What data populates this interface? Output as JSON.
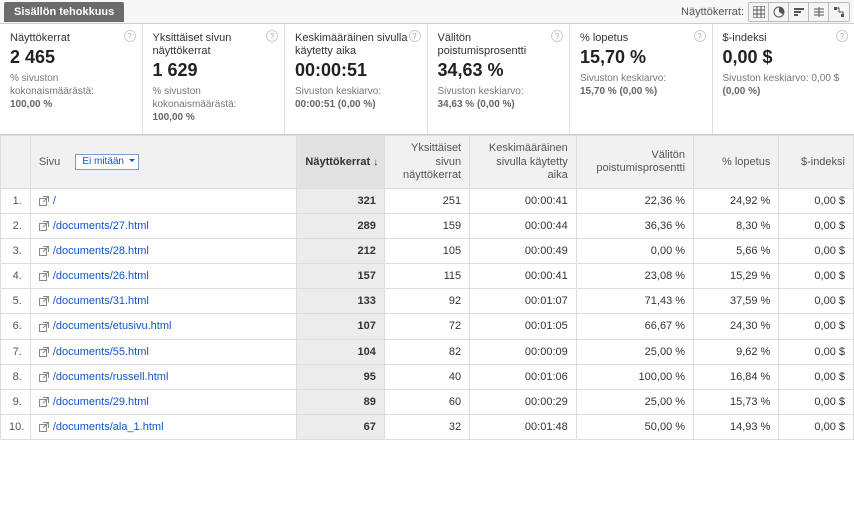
{
  "topbar": {
    "tab_label": "Sisällön tehokkuus",
    "views_label": "Näyttökerrat:"
  },
  "metrics": [
    {
      "label": "Näyttökerrat",
      "value": "2 465",
      "sub1": "% sivuston kokonaismäärästä:",
      "sub2": "100,00 %"
    },
    {
      "label": "Yksittäiset sivun näyttökerrat",
      "value": "1 629",
      "sub1": "% sivuston kokonaismäärästä:",
      "sub2": "100,00 %"
    },
    {
      "label": "Keskimääräinen sivulla käytetty aika",
      "value": "00:00:51",
      "sub1": "Sivuston keskiarvo:",
      "sub2": "00:00:51 (0,00 %)"
    },
    {
      "label": "Välitön poistumisprosentti",
      "value": "34,63 %",
      "sub1": "Sivuston keskiarvo:",
      "sub2": "34,63 % (0,00 %)"
    },
    {
      "label": "% lopetus",
      "value": "15,70 %",
      "sub1": "Sivuston keskiarvo:",
      "sub2": "15,70 % (0,00 %)"
    },
    {
      "label": "$-indeksi",
      "value": "0,00 $",
      "sub1": "Sivuston keskiarvo: 0,00 $",
      "sub2": "(0,00 %)"
    }
  ],
  "table": {
    "page_header": "Sivu",
    "dropdown_label": "Ei mitään",
    "columns": [
      "Näyttökerrat",
      "Yksittäiset sivun näyttökerrat",
      "Keskimääräinen sivulla käytetty aika",
      "Välitön poistumisprosentti",
      "% lopetus",
      "$-indeksi"
    ],
    "sort_arrow": "↓",
    "rows": [
      {
        "n": "1.",
        "page": "/",
        "c": [
          "321",
          "251",
          "00:00:41",
          "22,36 %",
          "24,92 %",
          "0,00 $"
        ]
      },
      {
        "n": "2.",
        "page": "/documents/27.html",
        "c": [
          "289",
          "159",
          "00:00:44",
          "36,36 %",
          "8,30 %",
          "0,00 $"
        ]
      },
      {
        "n": "3.",
        "page": "/documents/28.html",
        "c": [
          "212",
          "105",
          "00:00:49",
          "0,00 %",
          "5,66 %",
          "0,00 $"
        ]
      },
      {
        "n": "4.",
        "page": "/documents/26.html",
        "c": [
          "157",
          "115",
          "00:00:41",
          "23,08 %",
          "15,29 %",
          "0,00 $"
        ]
      },
      {
        "n": "5.",
        "page": "/documents/31.html",
        "c": [
          "133",
          "92",
          "00:01:07",
          "71,43 %",
          "37,59 %",
          "0,00 $"
        ]
      },
      {
        "n": "6.",
        "page": "/documents/etusivu.html",
        "c": [
          "107",
          "72",
          "00:01:05",
          "66,67 %",
          "24,30 %",
          "0,00 $"
        ]
      },
      {
        "n": "7.",
        "page": "/documents/55.html",
        "c": [
          "104",
          "82",
          "00:00:09",
          "25,00 %",
          "9,62 %",
          "0,00 $"
        ]
      },
      {
        "n": "8.",
        "page": "/documents/russell.html",
        "c": [
          "95",
          "40",
          "00:01:06",
          "100,00 %",
          "16,84 %",
          "0,00 $"
        ]
      },
      {
        "n": "9.",
        "page": "/documents/29.html",
        "c": [
          "89",
          "60",
          "00:00:29",
          "25,00 %",
          "15,73 %",
          "0,00 $"
        ]
      },
      {
        "n": "10.",
        "page": "/documents/ala_1.html",
        "c": [
          "67",
          "32",
          "00:01:48",
          "50,00 %",
          "14,93 %",
          "0,00 $"
        ]
      }
    ]
  },
  "colors": {
    "link": "#1155cc",
    "header_bg": "#f1f1f1",
    "sorted_bg": "#e2e2e2",
    "sorted_cell_bg": "#ececec",
    "border": "#dddddd",
    "tab_bg": "#6b6b6b"
  }
}
